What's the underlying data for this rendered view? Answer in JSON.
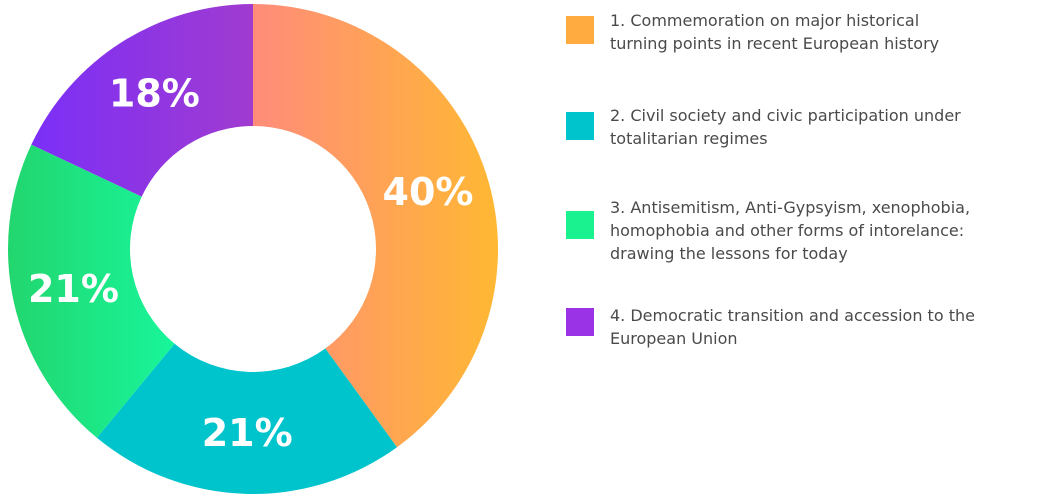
{
  "chart_data": {
    "type": "pie",
    "variant": "donut",
    "categories": [
      "1. Commemoration on major historical\nturning points in recent European history",
      "2. Civil society and civic participation under\ntotalitarian regimes",
      "3. Antisemitism, Anti-Gypsyism, xenophobia,\nhomophobia and other forms of intorelance:\ndrawing the lessons for today",
      "4. Democratic transition and accession to the\nEuropean Union"
    ],
    "values": [
      40,
      21,
      21,
      18
    ],
    "data_labels": [
      "40%",
      "21%",
      "21%",
      "18%"
    ],
    "colors": [
      {
        "from": "#ff8c7a",
        "to": "#ffb833"
      },
      {
        "from": "#00c4cc",
        "to": "#00c4cc"
      },
      {
        "from": "#22d66e",
        "to": "#18f59a"
      },
      {
        "from": "#7b2ff7",
        "to": "#a03bd0"
      }
    ],
    "legend_swatch_colors": [
      "#ffab3f",
      "#00c4cc",
      "#19f28e",
      "#9a33e6"
    ],
    "start_angle_deg": 0,
    "direction": "clockwise",
    "legend_position": "right"
  }
}
